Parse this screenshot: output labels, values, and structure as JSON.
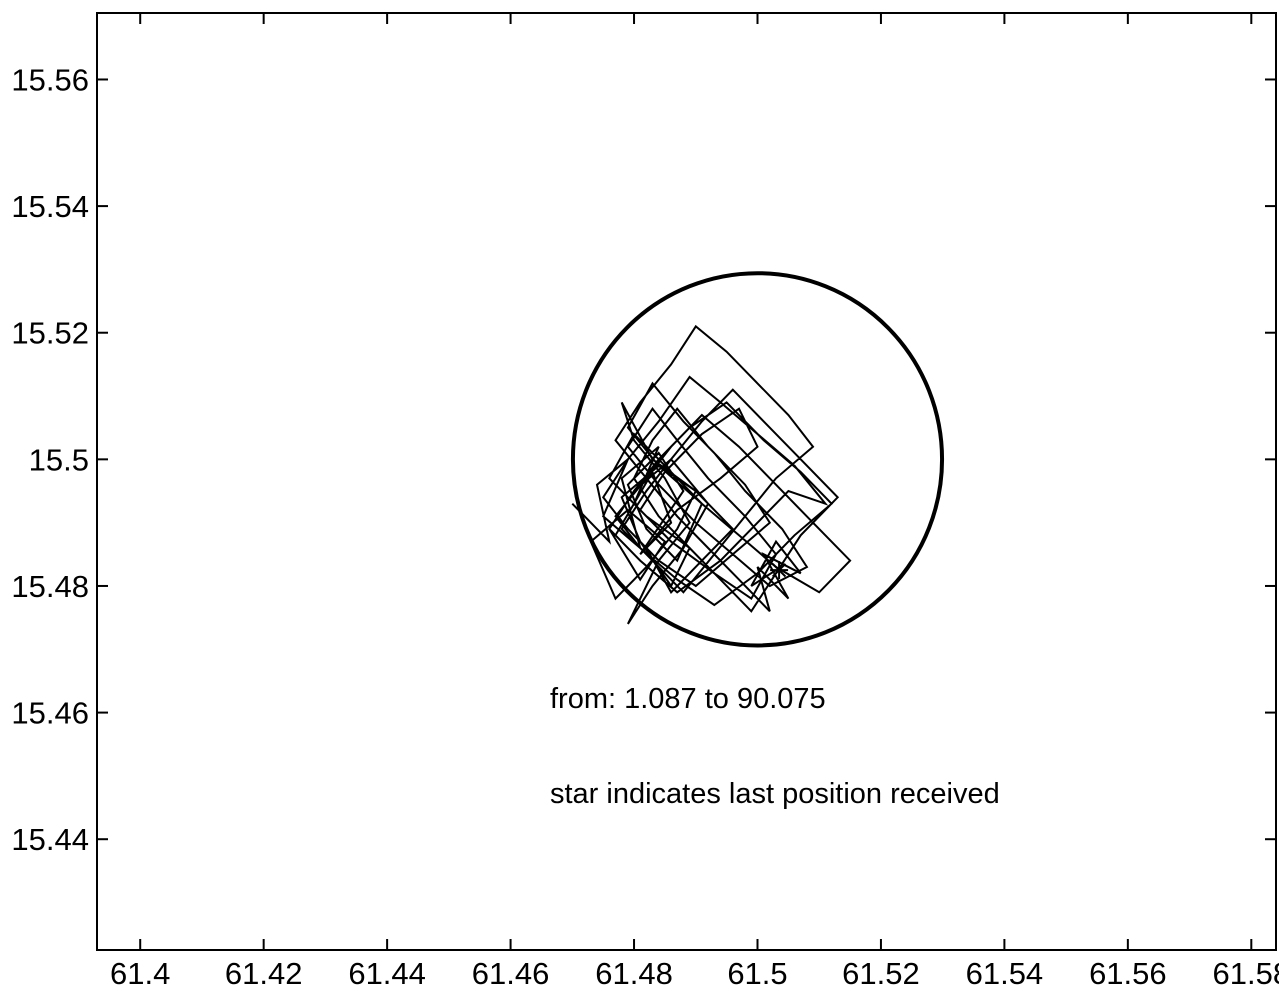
{
  "chart_data": {
    "type": "line",
    "title": "",
    "xlabel": "",
    "ylabel": "",
    "xlim": [
      61.393,
      61.584
    ],
    "ylim": [
      15.4225,
      15.5705
    ],
    "xticks": [
      61.4,
      61.42,
      61.44,
      61.46,
      61.48,
      61.5,
      61.52,
      61.54,
      61.56,
      61.58
    ],
    "xtick_labels": [
      "61.4",
      "61.42",
      "61.44",
      "61.46",
      "61.48",
      "61.5",
      "61.52",
      "61.54",
      "61.56",
      "61.58"
    ],
    "yticks": [
      15.44,
      15.46,
      15.48,
      15.5,
      15.52,
      15.54,
      15.56
    ],
    "ytick_labels": [
      "15.44",
      "15.46",
      "15.48",
      "15.5",
      "15.52",
      "15.54",
      "15.56"
    ],
    "grid": false,
    "color": "#000000",
    "circle": {
      "center": [
        61.5,
        15.5
      ],
      "radius_x": 0.0299,
      "radius_y": 0.0294
    },
    "annotations": [
      "from:   1.087 to  90.075",
      "star indicates last position received"
    ],
    "track": {
      "x": [
        61.47,
        61.476,
        61.474,
        61.479,
        61.475,
        61.481,
        61.478,
        61.484,
        61.48,
        61.477,
        61.483,
        61.486,
        61.481,
        61.488,
        61.484,
        61.479,
        61.482,
        61.487,
        61.491,
        61.485,
        61.48,
        61.476,
        61.482,
        61.489,
        61.486,
        61.481,
        61.478,
        61.484,
        61.49,
        61.487,
        61.482,
        61.477,
        61.473,
        61.479,
        61.485,
        61.481,
        61.476,
        61.48,
        61.486,
        61.492,
        61.488,
        61.483,
        61.479,
        61.484,
        61.489,
        61.485,
        61.48,
        61.478,
        61.483,
        61.49,
        61.496,
        61.491,
        61.486,
        61.482,
        61.487,
        61.494,
        61.5,
        61.497,
        61.491,
        61.485,
        61.481,
        61.486,
        61.493,
        61.499,
        61.503,
        61.498,
        61.492,
        61.487,
        61.483,
        61.479,
        61.484,
        61.49,
        61.496,
        61.502,
        61.508,
        61.504,
        61.498,
        61.493,
        61.488,
        61.483,
        61.479,
        61.484,
        61.491,
        61.497,
        61.503,
        61.51,
        61.515,
        61.509,
        61.503,
        61.497,
        61.491,
        61.486,
        61.482,
        61.477,
        61.481,
        61.487,
        61.493,
        61.5,
        61.506,
        61.512,
        61.507,
        61.501,
        61.495,
        61.489,
        61.484,
        61.48,
        61.476,
        61.481,
        61.487,
        61.494,
        61.5,
        61.505,
        61.511,
        61.506,
        61.5,
        61.494,
        61.489,
        61.484,
        61.479,
        61.475,
        61.479,
        61.484,
        61.49,
        61.496,
        61.502,
        61.498,
        61.492,
        61.487,
        61.483,
        61.48,
        61.484,
        61.489,
        61.494,
        61.499,
        61.503,
        61.507,
        61.513,
        61.507,
        61.501,
        61.496,
        61.491,
        61.486,
        61.482,
        61.478,
        61.483,
        61.488,
        61.493,
        61.498,
        61.503,
        61.509,
        61.505,
        61.5,
        61.495,
        61.49,
        61.486,
        61.481,
        61.477,
        61.482,
        61.487,
        61.492,
        61.497,
        61.502,
        61.5,
        61.505,
        61.501,
        61.507,
        61.503,
        61.499,
        61.503
      ],
      "y": [
        15.493,
        15.487,
        15.496,
        15.5,
        15.491,
        15.486,
        15.497,
        15.502,
        15.493,
        15.488,
        15.498,
        15.49,
        15.485,
        15.495,
        15.501,
        15.496,
        15.489,
        15.484,
        15.493,
        15.499,
        15.504,
        15.497,
        15.491,
        15.486,
        15.48,
        15.487,
        15.494,
        15.499,
        15.495,
        15.489,
        15.483,
        15.478,
        15.487,
        15.492,
        15.487,
        15.481,
        15.489,
        15.495,
        15.5,
        15.493,
        15.486,
        15.48,
        15.474,
        15.484,
        15.49,
        15.497,
        15.503,
        15.509,
        15.5,
        15.495,
        15.489,
        15.484,
        15.479,
        15.486,
        15.492,
        15.497,
        15.502,
        15.508,
        15.504,
        15.498,
        15.492,
        15.487,
        15.482,
        15.478,
        15.485,
        15.491,
        15.497,
        15.503,
        15.508,
        15.502,
        15.496,
        15.49,
        15.485,
        15.48,
        15.483,
        15.489,
        15.495,
        15.501,
        15.506,
        15.512,
        15.505,
        15.499,
        15.493,
        15.488,
        15.483,
        15.479,
        15.484,
        15.49,
        15.496,
        15.502,
        15.507,
        15.502,
        15.497,
        15.491,
        15.486,
        15.481,
        15.477,
        15.482,
        15.488,
        15.493,
        15.498,
        15.503,
        15.509,
        15.505,
        15.5,
        15.495,
        15.489,
        15.484,
        15.479,
        15.484,
        15.49,
        15.495,
        15.493,
        15.499,
        15.504,
        15.509,
        15.513,
        15.506,
        15.5,
        15.494,
        15.489,
        15.484,
        15.48,
        15.485,
        15.49,
        15.496,
        15.502,
        15.508,
        15.503,
        15.497,
        15.491,
        15.486,
        15.481,
        15.476,
        15.482,
        15.488,
        15.494,
        15.5,
        15.506,
        15.511,
        15.506,
        15.5,
        15.495,
        15.489,
        15.484,
        15.479,
        15.485,
        15.491,
        15.497,
        15.502,
        15.507,
        15.512,
        15.517,
        15.521,
        15.515,
        15.509,
        15.503,
        15.497,
        15.491,
        15.486,
        15.481,
        15.476,
        15.483,
        15.478,
        15.485,
        15.482,
        15.487,
        15.48,
        15.4825
      ]
    },
    "last_position": {
      "x": 61.5035,
      "y": 15.4825,
      "marker": "star"
    }
  }
}
